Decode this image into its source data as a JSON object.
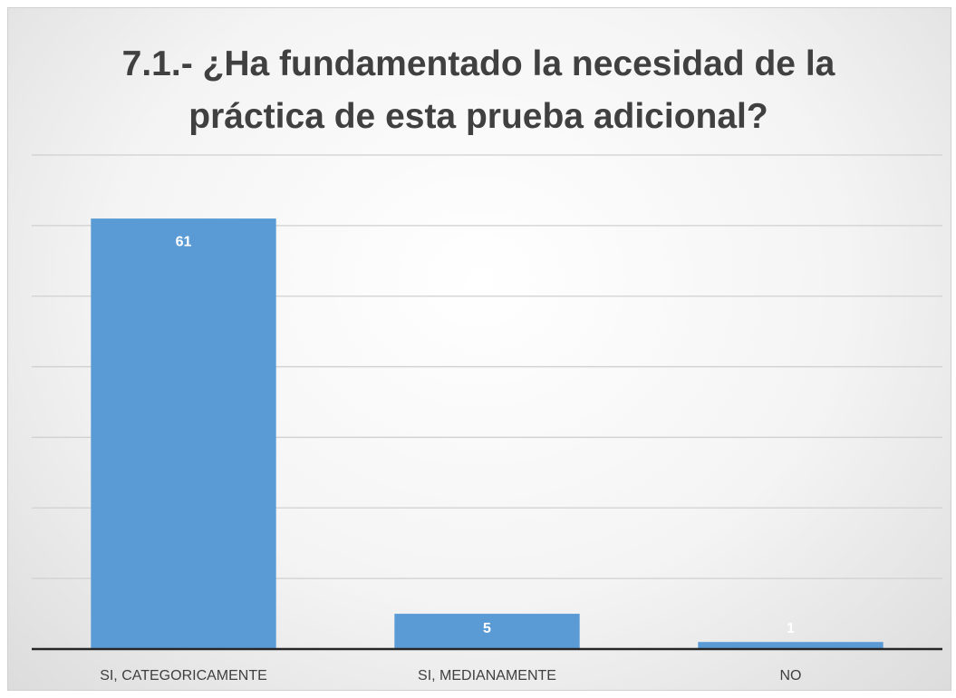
{
  "chart_data": {
    "type": "bar",
    "title": "7.1.- ¿Ha fundamentado la necesidad de la práctica de esta prueba adicional?",
    "categories": [
      "SI, CATEGORICAMENTE",
      "SI, MEDIANAMENTE",
      "NO"
    ],
    "values": [
      61,
      5,
      1
    ],
    "color": "#5b9bd5",
    "ylim": [
      0,
      70
    ],
    "yticks": [
      0,
      10,
      20,
      30,
      40,
      50,
      60,
      70
    ],
    "grid": true
  }
}
